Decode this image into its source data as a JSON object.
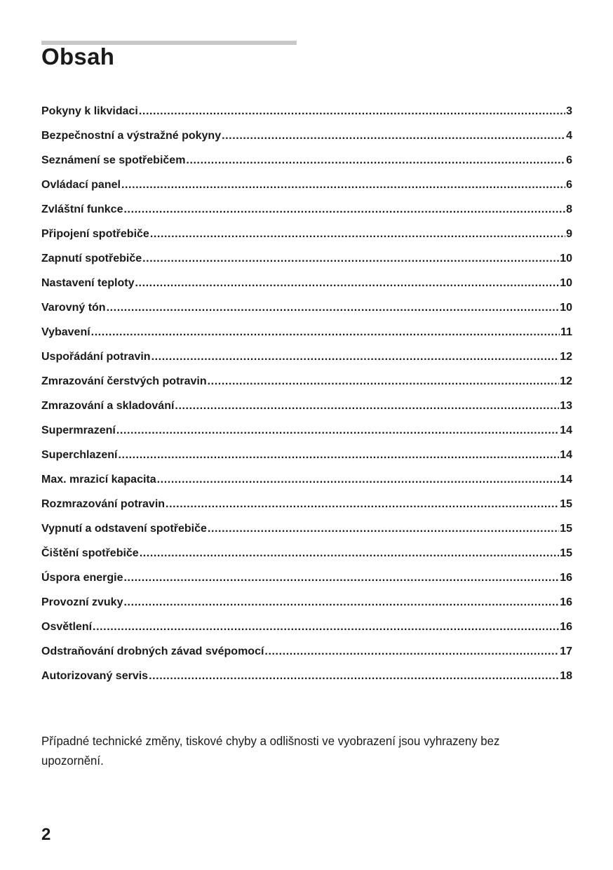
{
  "title": "Obsah",
  "toc": [
    {
      "title": "Pokyny k likvidaci ",
      "page": "3"
    },
    {
      "title": "Bezpečnostní a výstražné pokyny",
      "page": "4"
    },
    {
      "title": "Seznámení se spotřebičem ",
      "page": "6"
    },
    {
      "title": "Ovládací panel",
      "page": "6"
    },
    {
      "title": "Zvláštní funkce ",
      "page": "8"
    },
    {
      "title": "Připojení spotřebiče",
      "page": "9"
    },
    {
      "title": "Zapnutí spotřebiče ",
      "page": "10"
    },
    {
      "title": "Nastavení teploty",
      "page": "10"
    },
    {
      "title": "Varovný tón",
      "page": "10"
    },
    {
      "title": "Vybavení",
      "page": "11"
    },
    {
      "title": "Uspořádání potravin",
      "page": "12"
    },
    {
      "title": "Zmrazování čerstvých potravin ",
      "page": "12"
    },
    {
      "title": "Zmrazování a skladování ",
      "page": "13"
    },
    {
      "title": "Supermrazení",
      "page": "14"
    },
    {
      "title": "Superchlazení ",
      "page": "14"
    },
    {
      "title": "Max. mrazicí kapacita",
      "page": "14"
    },
    {
      "title": "Rozmrazování potravin",
      "page": "15"
    },
    {
      "title": "Vypnutí a odstavení spotřebiče ",
      "page": "15"
    },
    {
      "title": "Čištění spotřebiče ",
      "page": "15"
    },
    {
      "title": "Úspora energie ",
      "page": "16"
    },
    {
      "title": "Provozní zvuky ",
      "page": "16"
    },
    {
      "title": "Osvětlení ",
      "page": "16"
    },
    {
      "title": "Odstraňování drobných závad svépomocí",
      "page": "17"
    },
    {
      "title": "Autorizovaný servis ",
      "page": "18"
    }
  ],
  "note": "Případné technické změny, tiskové chyby a odlišnosti ve vyobrazení jsou vyhrazeny bez upozornění.",
  "page_number": "2"
}
